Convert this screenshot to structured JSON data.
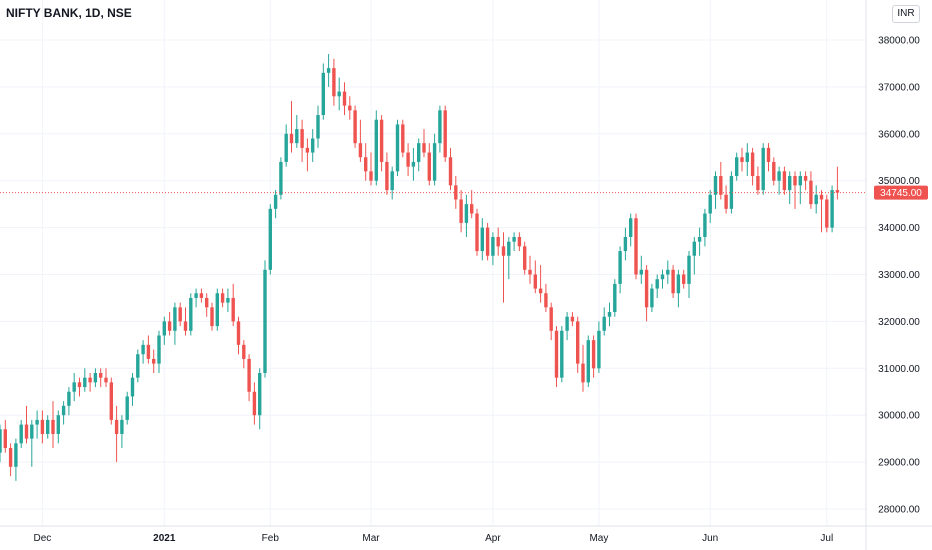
{
  "header": {
    "title": "NIFTY BANK, 1D, NSE",
    "currency": "INR"
  },
  "colors": {
    "up": "#26a69a",
    "down": "#ef5350",
    "grid": "#f0f3fa",
    "axis": "#e0e3eb"
  },
  "chart_data": {
    "type": "candlestick",
    "ylim": [
      27700,
      38600
    ],
    "y_ticks": [
      "28000.00",
      "29000.00",
      "30000.00",
      "31000.00",
      "32000.00",
      "33000.00",
      "34000.00",
      "35000.00",
      "36000.00",
      "37000.00",
      "38000.00"
    ],
    "x_ticks": [
      {
        "label": "Dec",
        "index": 8,
        "bold": false
      },
      {
        "label": "2021",
        "index": 31,
        "bold": true
      },
      {
        "label": "Feb",
        "index": 51,
        "bold": false
      },
      {
        "label": "Mar",
        "index": 70,
        "bold": false
      },
      {
        "label": "Apr",
        "index": 93,
        "bold": false
      },
      {
        "label": "May",
        "index": 113,
        "bold": false
      },
      {
        "label": "Jun",
        "index": 134,
        "bold": false
      },
      {
        "label": "Jul",
        "index": 156,
        "bold": false
      }
    ],
    "last_price": 34745.0,
    "last_price_label": "34745.00",
    "ohlc": [
      [
        29200,
        29800,
        29000,
        29700
      ],
      [
        29700,
        29900,
        29200,
        29300
      ],
      [
        29300,
        29400,
        28700,
        28900
      ],
      [
        28900,
        29500,
        28600,
        29400
      ],
      [
        29400,
        29900,
        29300,
        29800
      ],
      [
        29800,
        30200,
        29400,
        29500
      ],
      [
        29500,
        29900,
        28900,
        29800
      ],
      [
        29800,
        30100,
        29500,
        29900
      ],
      [
        29900,
        30100,
        29400,
        29600
      ],
      [
        29600,
        30000,
        29500,
        29900
      ],
      [
        29900,
        30300,
        29300,
        29600
      ],
      [
        29600,
        30100,
        29400,
        30000
      ],
      [
        30000,
        30300,
        29800,
        30200
      ],
      [
        30200,
        30600,
        30000,
        30500
      ],
      [
        30500,
        30900,
        30300,
        30700
      ],
      [
        30700,
        30800,
        30400,
        30600
      ],
      [
        30600,
        31000,
        30500,
        30800
      ],
      [
        30800,
        30900,
        30500,
        30700
      ],
      [
        30700,
        31000,
        30600,
        30900
      ],
      [
        30900,
        31000,
        30600,
        30800
      ],
      [
        30800,
        31000,
        30600,
        30700
      ],
      [
        30700,
        30800,
        29800,
        29900
      ],
      [
        29900,
        30200,
        29000,
        29600
      ],
      [
        29600,
        30000,
        29300,
        29900
      ],
      [
        29900,
        30500,
        29800,
        30400
      ],
      [
        30400,
        30900,
        30200,
        30800
      ],
      [
        30800,
        31400,
        30700,
        31300
      ],
      [
        31300,
        31600,
        31100,
        31500
      ],
      [
        31500,
        31700,
        31100,
        31200
      ],
      [
        31200,
        31400,
        30900,
        31100
      ],
      [
        31100,
        31800,
        30900,
        31700
      ],
      [
        31700,
        32100,
        31500,
        32000
      ],
      [
        32000,
        32200,
        31700,
        31800
      ],
      [
        31800,
        32400,
        31500,
        32300
      ],
      [
        32300,
        32400,
        31900,
        32000
      ],
      [
        32000,
        32300,
        31700,
        31800
      ],
      [
        31800,
        32600,
        31700,
        32500
      ],
      [
        32500,
        32700,
        32300,
        32600
      ],
      [
        32600,
        32700,
        32400,
        32500
      ],
      [
        32500,
        32600,
        32100,
        32300
      ],
      [
        32300,
        32400,
        31800,
        31900
      ],
      [
        31900,
        32700,
        31800,
        32600
      ],
      [
        32600,
        32700,
        32300,
        32400
      ],
      [
        32400,
        32700,
        32200,
        32500
      ],
      [
        32500,
        32800,
        31900,
        32000
      ],
      [
        32000,
        32100,
        31300,
        31500
      ],
      [
        31500,
        31600,
        31000,
        31200
      ],
      [
        31200,
        31300,
        30300,
        30500
      ],
      [
        30500,
        30700,
        29800,
        30000
      ],
      [
        30000,
        31000,
        29700,
        30900
      ],
      [
        30900,
        33300,
        30800,
        33100
      ],
      [
        33100,
        34500,
        33000,
        34400
      ],
      [
        34400,
        34800,
        34200,
        34700
      ],
      [
        34700,
        35500,
        34600,
        35400
      ],
      [
        35400,
        36200,
        35300,
        36000
      ],
      [
        36000,
        36700,
        35600,
        35800
      ],
      [
        35800,
        36400,
        35700,
        36100
      ],
      [
        36100,
        36300,
        35400,
        35700
      ],
      [
        35700,
        35900,
        35200,
        35600
      ],
      [
        35600,
        36100,
        35400,
        35900
      ],
      [
        35900,
        36600,
        35700,
        36400
      ],
      [
        36400,
        37500,
        36300,
        37300
      ],
      [
        37300,
        37700,
        37000,
        37400
      ],
      [
        37400,
        37600,
        36600,
        36800
      ],
      [
        36800,
        37200,
        36500,
        36900
      ],
      [
        36900,
        37100,
        36400,
        36600
      ],
      [
        36600,
        36800,
        36300,
        36500
      ],
      [
        36500,
        36600,
        35700,
        35800
      ],
      [
        35800,
        36300,
        35400,
        35500
      ],
      [
        35500,
        35800,
        35000,
        35200
      ],
      [
        35200,
        35600,
        34900,
        35000
      ],
      [
        35000,
        36500,
        34900,
        36300
      ],
      [
        36300,
        36400,
        35200,
        35400
      ],
      [
        35400,
        35600,
        34700,
        34800
      ],
      [
        34800,
        35300,
        34600,
        35200
      ],
      [
        35200,
        36300,
        35100,
        36200
      ],
      [
        36200,
        36300,
        35500,
        35600
      ],
      [
        35600,
        35800,
        35100,
        35300
      ],
      [
        35300,
        35700,
        35000,
        35400
      ],
      [
        35400,
        35900,
        35200,
        35800
      ],
      [
        35800,
        36100,
        35500,
        35600
      ],
      [
        35600,
        35800,
        34900,
        35000
      ],
      [
        35000,
        36000,
        34900,
        35800
      ],
      [
        35800,
        36600,
        35600,
        36500
      ],
      [
        36500,
        36600,
        35400,
        35500
      ],
      [
        35500,
        35700,
        34800,
        34900
      ],
      [
        34900,
        35100,
        34400,
        34600
      ],
      [
        34600,
        34800,
        33900,
        34100
      ],
      [
        34100,
        34700,
        33800,
        34500
      ],
      [
        34500,
        34800,
        34200,
        34300
      ],
      [
        34300,
        34400,
        33400,
        33500
      ],
      [
        33500,
        34200,
        33300,
        34000
      ],
      [
        34000,
        34100,
        33300,
        33400
      ],
      [
        33400,
        33900,
        33200,
        33800
      ],
      [
        33800,
        34000,
        33400,
        33600
      ],
      [
        33600,
        33900,
        32400,
        33400
      ],
      [
        33400,
        33800,
        32900,
        33700
      ],
      [
        33700,
        33900,
        33500,
        33800
      ],
      [
        33800,
        33900,
        33500,
        33600
      ],
      [
        33600,
        33700,
        33000,
        33100
      ],
      [
        33100,
        33400,
        32800,
        33000
      ],
      [
        33000,
        33300,
        32600,
        32700
      ],
      [
        32700,
        33200,
        32400,
        32600
      ],
      [
        32600,
        32800,
        32200,
        32300
      ],
      [
        32300,
        32400,
        31600,
        31800
      ],
      [
        31800,
        31900,
        30600,
        30800
      ],
      [
        30800,
        31900,
        30700,
        31800
      ],
      [
        31800,
        32200,
        31600,
        32100
      ],
      [
        32100,
        32200,
        31900,
        32000
      ],
      [
        32000,
        32100,
        30900,
        31100
      ],
      [
        31100,
        31500,
        30500,
        30700
      ],
      [
        30700,
        31700,
        30600,
        31600
      ],
      [
        31600,
        31700,
        30800,
        31000
      ],
      [
        31000,
        32000,
        30900,
        31800
      ],
      [
        31800,
        32300,
        31700,
        32100
      ],
      [
        32100,
        32400,
        31900,
        32200
      ],
      [
        32200,
        32900,
        32100,
        32800
      ],
      [
        32800,
        33600,
        32600,
        33500
      ],
      [
        33500,
        34000,
        33300,
        33800
      ],
      [
        33800,
        34300,
        33600,
        34200
      ],
      [
        34200,
        34300,
        32900,
        33000
      ],
      [
        33000,
        33400,
        32800,
        33100
      ],
      [
        33100,
        33200,
        32000,
        32300
      ],
      [
        32300,
        32800,
        32200,
        32700
      ],
      [
        32700,
        33000,
        32500,
        32900
      ],
      [
        32900,
        33100,
        32700,
        33000
      ],
      [
        33000,
        33300,
        32800,
        33100
      ],
      [
        33100,
        33200,
        32500,
        32600
      ],
      [
        32600,
        33100,
        32300,
        33000
      ],
      [
        33000,
        33100,
        32700,
        32800
      ],
      [
        32800,
        33500,
        32500,
        33400
      ],
      [
        33400,
        33800,
        33000,
        33700
      ],
      [
        33700,
        34000,
        33400,
        33800
      ],
      [
        33800,
        34400,
        33600,
        34300
      ],
      [
        34300,
        34800,
        34100,
        34700
      ],
      [
        34700,
        35200,
        34400,
        35100
      ],
      [
        35100,
        35400,
        34600,
        34700
      ],
      [
        34700,
        34900,
        34300,
        34400
      ],
      [
        34400,
        35200,
        34300,
        35100
      ],
      [
        35100,
        35600,
        35000,
        35500
      ],
      [
        35500,
        35700,
        35200,
        35400
      ],
      [
        35400,
        35800,
        35100,
        35600
      ],
      [
        35600,
        35700,
        34900,
        35100
      ],
      [
        35100,
        35300,
        34700,
        34800
      ],
      [
        34800,
        35800,
        34700,
        35700
      ],
      [
        35700,
        35800,
        35200,
        35400
      ],
      [
        35400,
        35500,
        34900,
        35000
      ],
      [
        35000,
        35300,
        34700,
        35200
      ],
      [
        35200,
        35300,
        34700,
        34800
      ],
      [
        34800,
        35200,
        34500,
        35100
      ],
      [
        35100,
        35200,
        34400,
        34900
      ],
      [
        34900,
        35200,
        34500,
        35100
      ],
      [
        35100,
        35200,
        34800,
        35000
      ],
      [
        35000,
        35200,
        34400,
        34500
      ],
      [
        34500,
        34900,
        34300,
        34700
      ],
      [
        34700,
        34800,
        33900,
        34600
      ],
      [
        34600,
        34700,
        33900,
        34000
      ],
      [
        34000,
        34900,
        33900,
        34800
      ],
      [
        34800,
        35300,
        34600,
        34745
      ]
    ]
  }
}
